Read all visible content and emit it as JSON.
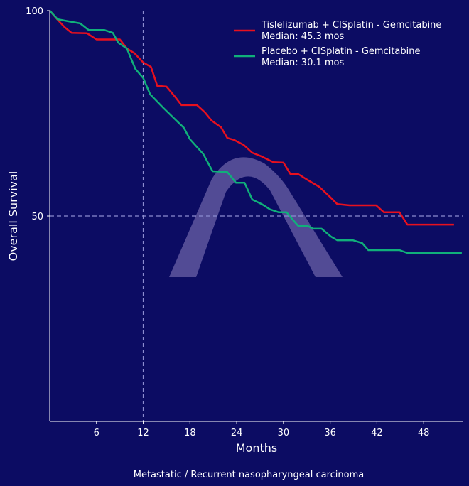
{
  "chart_data": {
    "type": "line",
    "title": "",
    "caption": "Metastatic / Recurrent nasopharyngeal carcinoma",
    "xlabel": "Months",
    "ylabel": "Overall Survival",
    "xlim": [
      0,
      53
    ],
    "ylim": [
      0,
      100
    ],
    "xticks": [
      6,
      12,
      18,
      24,
      30,
      36,
      42,
      48
    ],
    "yticks": [
      50,
      100
    ],
    "reference_lines": {
      "x": 12,
      "y": 50
    },
    "grid": false,
    "legend_position": "top-right",
    "series": [
      {
        "name": "Tislelizumab + CISplatin - Gemcitabine",
        "median_label": "Median: 45.3 mos",
        "color": "#e8101e",
        "x": [
          0,
          1,
          1.9,
          2.8,
          4.8,
          6,
          7.9,
          9,
          9.9,
          10.9,
          12,
          13,
          13.8,
          15,
          16.1,
          16.9,
          18.9,
          19.9,
          20.8,
          22,
          22.8,
          23.7,
          24.9,
          26,
          27.2,
          28.7,
          30,
          30.9,
          31.9,
          32.9,
          34.6,
          35.9,
          36.9,
          38.5,
          41.9,
          42.9,
          44.9,
          45.9,
          51.9
        ],
        "y": [
          100,
          97.8,
          96,
          94.6,
          94.5,
          93,
          93,
          93,
          90.8,
          89.6,
          87.4,
          86.3,
          81.7,
          81.5,
          79,
          77,
          77,
          75.3,
          73.2,
          71.6,
          69,
          68.5,
          67.3,
          65.4,
          64.5,
          63.1,
          63,
          60.2,
          60.2,
          59,
          57.1,
          54.8,
          52.9,
          52.6,
          52.6,
          50.9,
          50.9,
          47.9,
          47.9
        ]
      },
      {
        "name": "Placebo + CISplatin - Gemcitabine",
        "median_label": "Median: 30.1 mos",
        "color": "#10b07a",
        "x": [
          0,
          1,
          2.4,
          3.9,
          5,
          7,
          8.1,
          8.8,
          9.9,
          11,
          12,
          12.9,
          14.6,
          16,
          17.2,
          18,
          19.7,
          20.9,
          22.8,
          23.9,
          25,
          26,
          27.2,
          28.3,
          29.4,
          30.4,
          31.1,
          31.9,
          33.1,
          33.8,
          34.9,
          36.1,
          36.9,
          38.9,
          40.1,
          40.9,
          44.9,
          45.9,
          52.9
        ],
        "y": [
          100,
          97.9,
          97.4,
          96.9,
          95.3,
          95.3,
          94.6,
          92.2,
          90.8,
          85.8,
          83.6,
          79.6,
          76.3,
          73.7,
          71.5,
          68.7,
          65.1,
          60.9,
          60.7,
          58.1,
          58.1,
          54,
          52.9,
          51.6,
          50.9,
          50.9,
          49.3,
          47.6,
          47.6,
          46.9,
          46.9,
          45,
          44.1,
          44.1,
          43.4,
          41.7,
          41.7,
          41,
          41
        ]
      }
    ]
  }
}
